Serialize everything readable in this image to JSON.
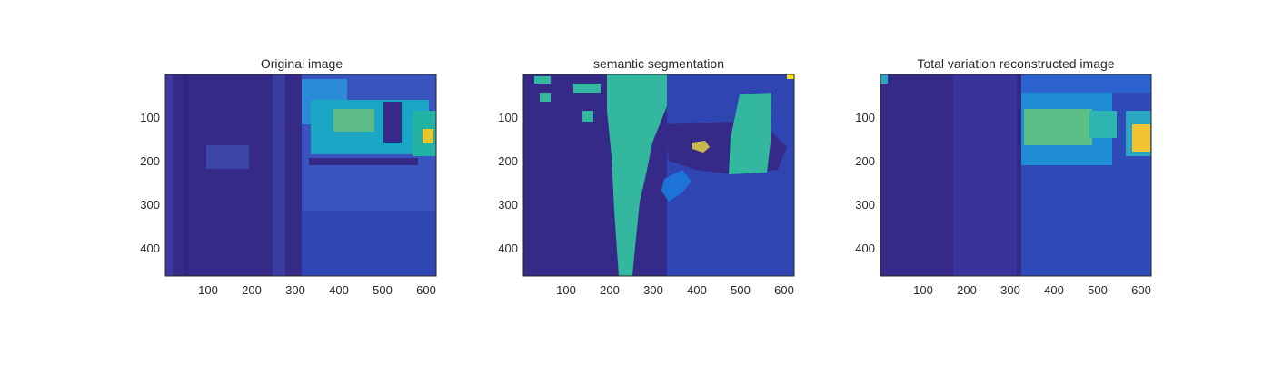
{
  "chart_data": [
    {
      "type": "heatmap",
      "title": "Original image",
      "xlabel": "",
      "ylabel": "",
      "xlim": [
        1,
        620
      ],
      "ylim": [
        1,
        460
      ],
      "y_direction": "reverse",
      "x_ticks": [
        "100",
        "200",
        "300",
        "400",
        "500",
        "600"
      ],
      "y_ticks": [
        "100",
        "200",
        "300",
        "400"
      ],
      "colormap": "parula",
      "grid": false
    },
    {
      "type": "heatmap",
      "title": "semantic segmentation",
      "xlabel": "",
      "ylabel": "",
      "xlim": [
        1,
        620
      ],
      "ylim": [
        1,
        460
      ],
      "y_direction": "reverse",
      "x_ticks": [
        "100",
        "200",
        "300",
        "400",
        "500",
        "600"
      ],
      "y_ticks": [
        "100",
        "200",
        "300",
        "400"
      ],
      "colormap": "parula",
      "grid": false
    },
    {
      "type": "heatmap",
      "title": "Total variation reconstructed image",
      "xlabel": "",
      "ylabel": "",
      "xlim": [
        1,
        620
      ],
      "ylim": [
        1,
        460
      ],
      "y_direction": "reverse",
      "x_ticks": [
        "100",
        "200",
        "300",
        "400",
        "500",
        "600"
      ],
      "y_ticks": [
        "100",
        "200",
        "300",
        "400"
      ],
      "colormap": "parula",
      "grid": false
    }
  ],
  "colors": {
    "dark_blue": "#352a87",
    "blue": "#2f4bb8",
    "mid_blue": "#1e73d8",
    "cyan": "#16a6c6",
    "teal": "#33b89f",
    "yellow_green": "#b9be5a",
    "yellow": "#f9e517"
  }
}
